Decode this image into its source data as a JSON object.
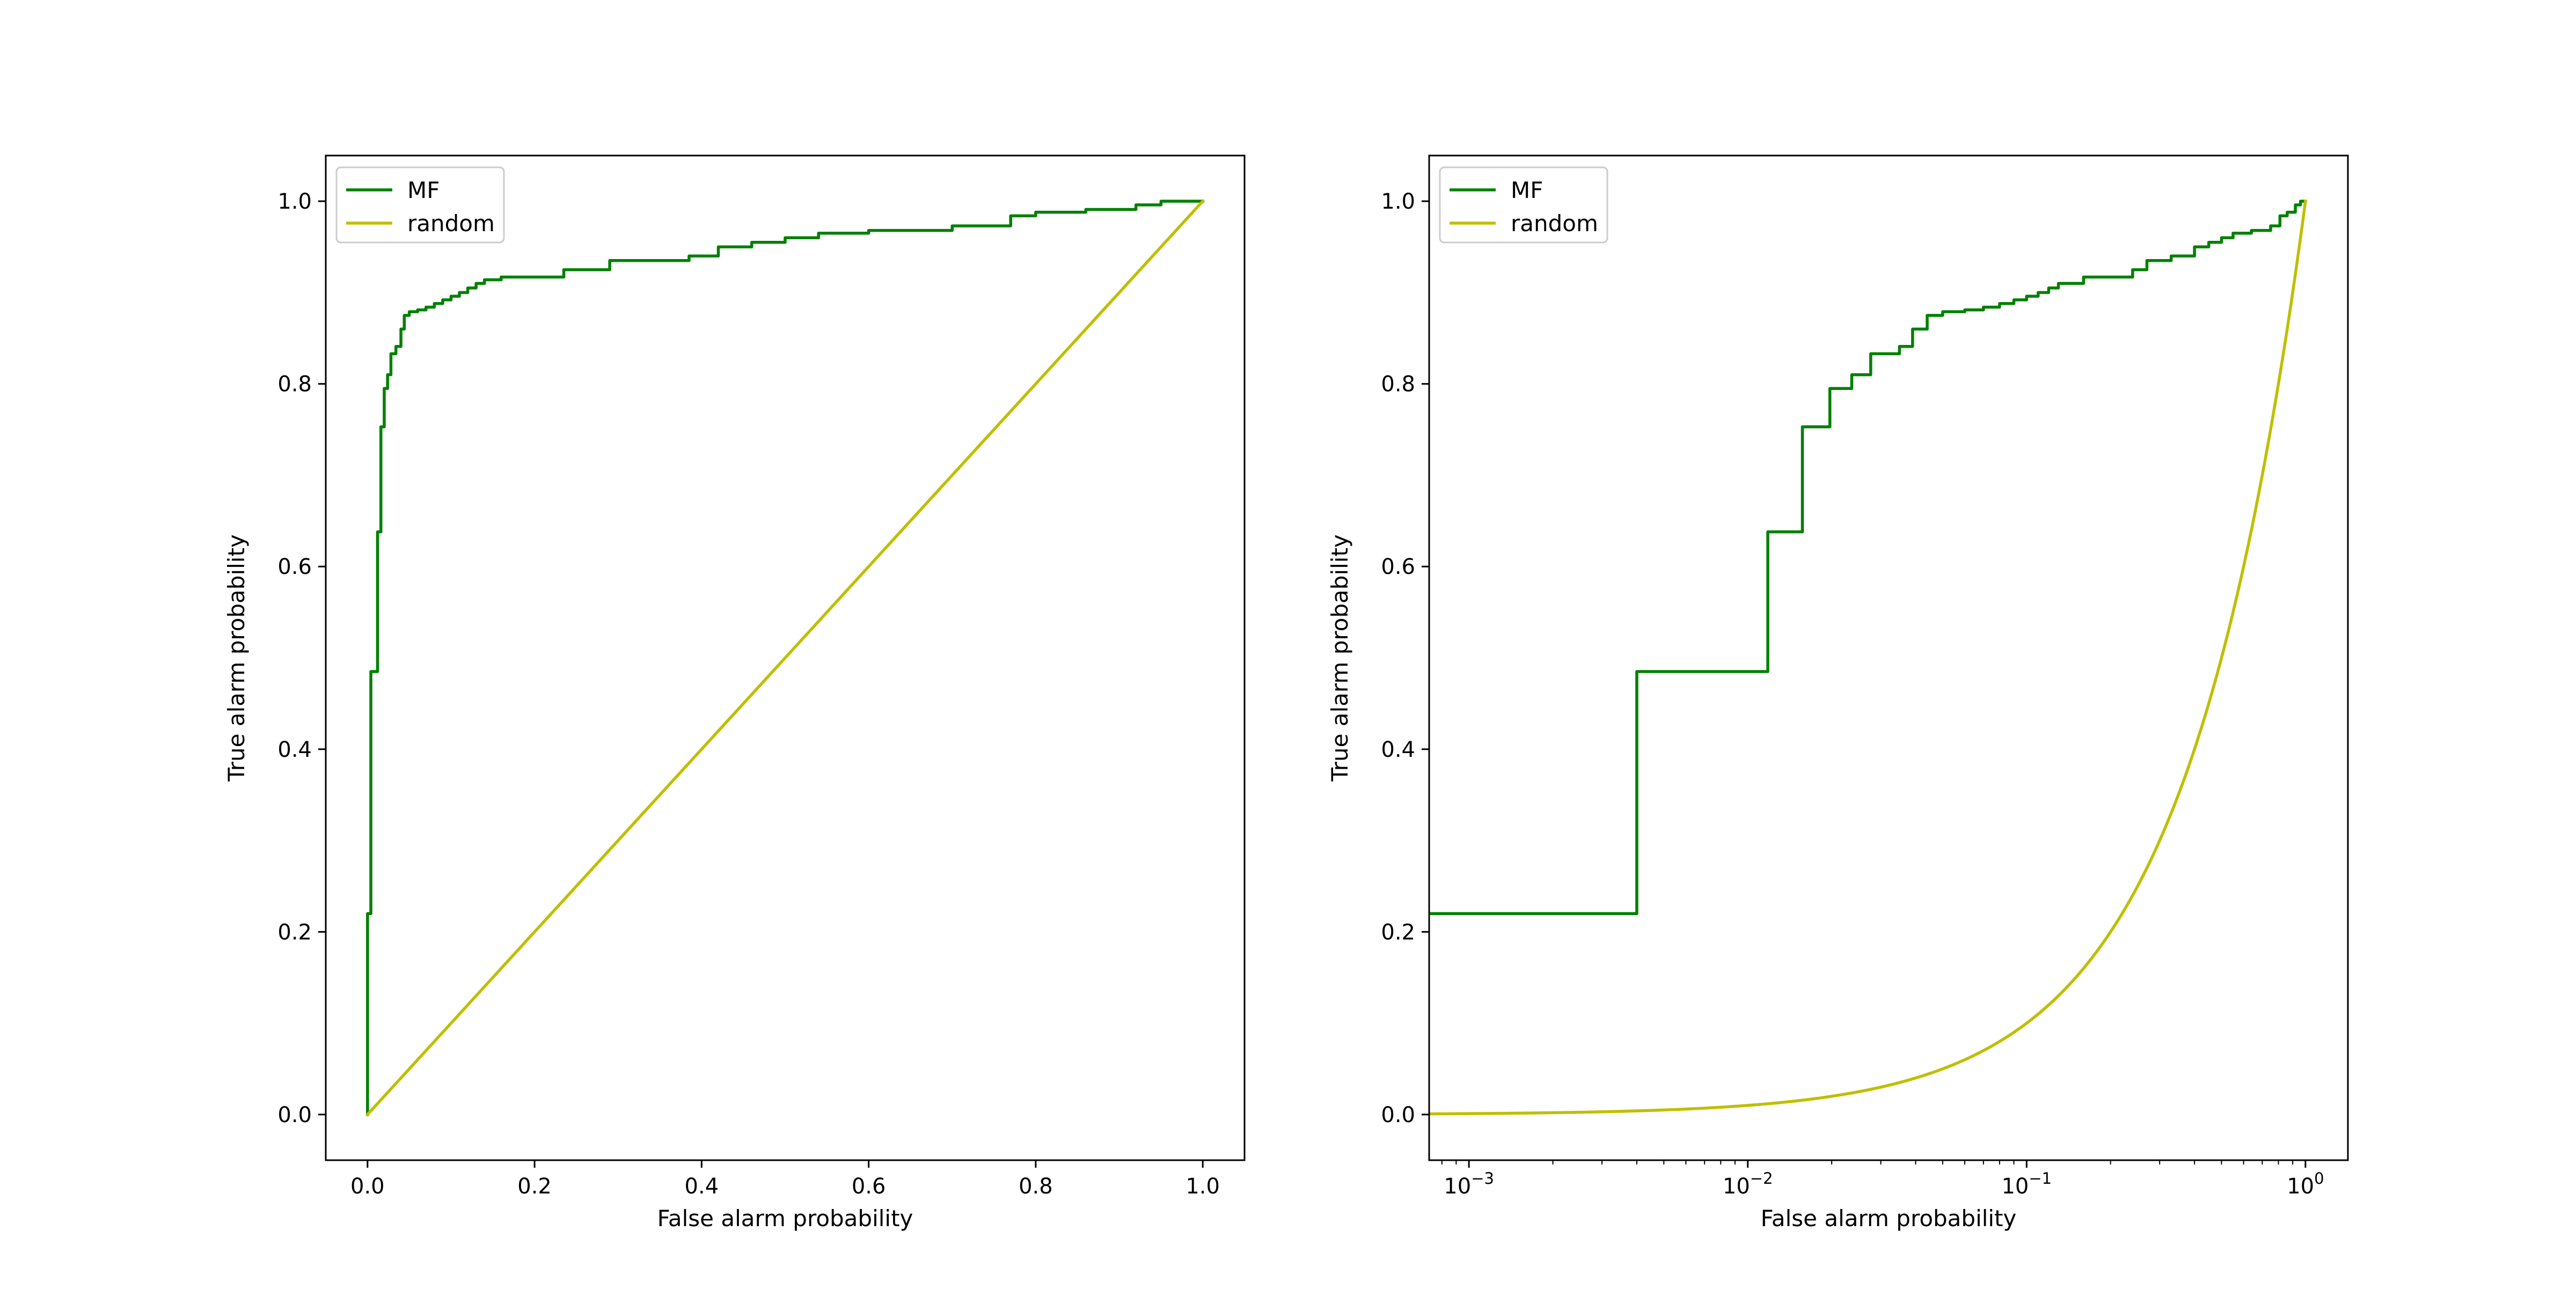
{
  "chart_data": [
    {
      "type": "line",
      "xlabel": "False alarm probability",
      "ylabel": "True alarm probability",
      "xscale": "linear",
      "xlim": [
        -0.05,
        1.05
      ],
      "ylim": [
        -0.05,
        1.05
      ],
      "xticks": [
        {
          "value": 0.0,
          "label": "0.0"
        },
        {
          "value": 0.2,
          "label": "0.2"
        },
        {
          "value": 0.4,
          "label": "0.4"
        },
        {
          "value": 0.6,
          "label": "0.6"
        },
        {
          "value": 0.8,
          "label": "0.8"
        },
        {
          "value": 1.0,
          "label": "1.0"
        }
      ],
      "yticks": [
        {
          "value": 0.0,
          "label": "0.0"
        },
        {
          "value": 0.2,
          "label": "0.2"
        },
        {
          "value": 0.4,
          "label": "0.4"
        },
        {
          "value": 0.6,
          "label": "0.6"
        },
        {
          "value": 0.8,
          "label": "0.8"
        },
        {
          "value": 1.0,
          "label": "1.0"
        }
      ],
      "legend": "top-left",
      "grid": false,
      "series": [
        {
          "name": "MF",
          "color": "#008000",
          "style": "step",
          "x": [
            0,
            0,
            0.004,
            0.004,
            0.012,
            0.012,
            0.016,
            0.016,
            0.02,
            0.02,
            0.024,
            0.024,
            0.028,
            0.028,
            0.034,
            0.034,
            0.04,
            0.04,
            0.044,
            0.044,
            0.05,
            0.05,
            0.06,
            0.06,
            0.07,
            0.07,
            0.08,
            0.08,
            0.09,
            0.09,
            0.1,
            0.1,
            0.11,
            0.11,
            0.12,
            0.12,
            0.13,
            0.13,
            0.14,
            0.14,
            0.16,
            0.16,
            0.235,
            0.235,
            0.29,
            0.29,
            0.385,
            0.385,
            0.42,
            0.42,
            0.46,
            0.46,
            0.5,
            0.5,
            0.54,
            0.54,
            0.6,
            0.6,
            0.7,
            0.7,
            0.77,
            0.77,
            0.8,
            0.8,
            0.86,
            0.86,
            0.92,
            0.92,
            0.95,
            0.95,
            1.0
          ],
          "y": [
            0,
            0.22,
            0.22,
            0.485,
            0.485,
            0.638,
            0.638,
            0.753,
            0.753,
            0.795,
            0.795,
            0.81,
            0.81,
            0.833,
            0.833,
            0.841,
            0.841,
            0.86,
            0.86,
            0.875,
            0.875,
            0.879,
            0.879,
            0.881,
            0.881,
            0.884,
            0.884,
            0.888,
            0.888,
            0.892,
            0.892,
            0.896,
            0.896,
            0.9,
            0.9,
            0.905,
            0.905,
            0.91,
            0.91,
            0.914,
            0.914,
            0.917,
            0.917,
            0.925,
            0.925,
            0.935,
            0.935,
            0.94,
            0.94,
            0.95,
            0.95,
            0.955,
            0.955,
            0.96,
            0.96,
            0.965,
            0.965,
            0.968,
            0.968,
            0.973,
            0.973,
            0.984,
            0.984,
            0.988,
            0.988,
            0.991,
            0.991,
            0.996,
            0.996,
            1.0,
            1.0
          ]
        },
        {
          "name": "random",
          "color": "#bfbf00",
          "style": "line",
          "x": [
            0,
            1
          ],
          "y": [
            0,
            1
          ]
        }
      ]
    },
    {
      "type": "line",
      "xlabel": "False alarm probability",
      "ylabel": "True alarm probability",
      "xscale": "log",
      "xlim": [
        0.00072,
        1.42
      ],
      "ylim": [
        -0.05,
        1.05
      ],
      "xticks": [
        {
          "value": 0.001,
          "base": "10",
          "exp": "−3"
        },
        {
          "value": 0.01,
          "base": "10",
          "exp": "−2"
        },
        {
          "value": 0.1,
          "base": "10",
          "exp": "−1"
        },
        {
          "value": 1,
          "base": "10",
          "exp": "0"
        }
      ],
      "yticks": [
        {
          "value": 0.0,
          "label": "0.0"
        },
        {
          "value": 0.2,
          "label": "0.2"
        },
        {
          "value": 0.4,
          "label": "0.4"
        },
        {
          "value": 0.6,
          "label": "0.6"
        },
        {
          "value": 0.8,
          "label": "0.8"
        },
        {
          "value": 1.0,
          "label": "1.0"
        }
      ],
      "legend": "top-left",
      "grid": false,
      "series": [
        {
          "name": "MF",
          "color": "#008000",
          "style": "step",
          "x": [
            0.00072,
            0.004,
            0.004,
            0.0118,
            0.0118,
            0.0157,
            0.0157,
            0.0197,
            0.0197,
            0.0236,
            0.0236,
            0.0276,
            0.0276,
            0.035,
            0.035,
            0.039,
            0.039,
            0.044,
            0.044,
            0.05,
            0.05,
            0.06,
            0.06,
            0.07,
            0.07,
            0.08,
            0.08,
            0.09,
            0.09,
            0.1,
            0.1,
            0.11,
            0.11,
            0.12,
            0.12,
            0.13,
            0.13,
            0.16,
            0.16,
            0.24,
            0.24,
            0.27,
            0.27,
            0.33,
            0.33,
            0.4,
            0.4,
            0.45,
            0.45,
            0.5,
            0.5,
            0.55,
            0.55,
            0.64,
            0.64,
            0.75,
            0.75,
            0.81,
            0.81,
            0.86,
            0.86,
            0.92,
            0.92,
            0.96,
            0.96,
            1.0
          ],
          "y": [
            0.22,
            0.22,
            0.485,
            0.485,
            0.638,
            0.638,
            0.753,
            0.753,
            0.795,
            0.795,
            0.81,
            0.81,
            0.833,
            0.833,
            0.841,
            0.841,
            0.86,
            0.86,
            0.875,
            0.875,
            0.879,
            0.879,
            0.881,
            0.881,
            0.884,
            0.884,
            0.888,
            0.888,
            0.892,
            0.892,
            0.896,
            0.896,
            0.9,
            0.9,
            0.905,
            0.905,
            0.91,
            0.91,
            0.917,
            0.917,
            0.925,
            0.925,
            0.935,
            0.935,
            0.94,
            0.94,
            0.95,
            0.95,
            0.955,
            0.955,
            0.96,
            0.96,
            0.965,
            0.965,
            0.968,
            0.968,
            0.973,
            0.973,
            0.984,
            0.984,
            0.988,
            0.988,
            0.996,
            0.996,
            1.0,
            1.0
          ]
        },
        {
          "name": "random",
          "color": "#bfbf00",
          "style": "line",
          "x": [
            0.00072,
            0.001,
            0.002,
            0.005,
            0.01,
            0.02,
            0.05,
            0.1,
            0.2,
            0.3,
            0.4,
            0.5,
            0.6,
            0.7,
            0.8,
            0.9,
            1.0
          ],
          "y": [
            0.00072,
            0.001,
            0.002,
            0.005,
            0.01,
            0.02,
            0.05,
            0.1,
            0.2,
            0.3,
            0.4,
            0.5,
            0.6,
            0.7,
            0.8,
            0.9,
            1.0
          ]
        }
      ]
    }
  ]
}
